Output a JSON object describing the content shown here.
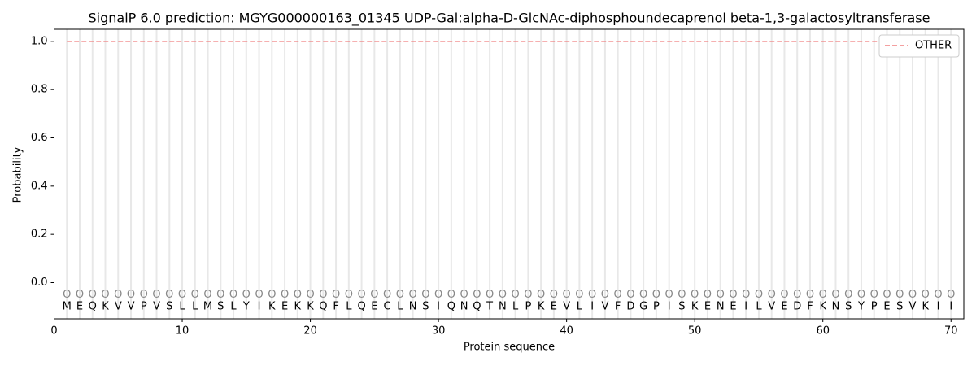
{
  "chart_data": {
    "type": "line",
    "title": "SignalP 6.0 prediction: MGYG000000163_01345 UDP-Gal:alpha-D-GlcNAc-diphosphoundecaprenol beta-1,3-galactosyltransferase",
    "x_label": "Protein sequence",
    "y_label": "Probability",
    "x": [
      1,
      2,
      3,
      4,
      5,
      6,
      7,
      8,
      9,
      10,
      11,
      12,
      13,
      14,
      15,
      16,
      17,
      18,
      19,
      20,
      21,
      22,
      23,
      24,
      25,
      26,
      27,
      28,
      29,
      30,
      31,
      32,
      33,
      34,
      35,
      36,
      37,
      38,
      39,
      40,
      41,
      42,
      43,
      44,
      45,
      46,
      47,
      48,
      49,
      50,
      51,
      52,
      53,
      54,
      55,
      56,
      57,
      58,
      59,
      60,
      61,
      62,
      63,
      64,
      65,
      66,
      67,
      68,
      69,
      70
    ],
    "sequence": [
      "M",
      "E",
      "Q",
      "K",
      "V",
      "V",
      "P",
      "V",
      "S",
      "L",
      "L",
      "M",
      "S",
      "L",
      "Y",
      "I",
      "K",
      "E",
      "K",
      "K",
      "Q",
      "F",
      "L",
      "Q",
      "E",
      "C",
      "L",
      "N",
      "S",
      "I",
      "Q",
      "N",
      "Q",
      "T",
      "N",
      "L",
      "P",
      "K",
      "E",
      "V",
      "L",
      "I",
      "V",
      "F",
      "D",
      "G",
      "P",
      "I",
      "S",
      "K",
      "E",
      "N",
      "E",
      "I",
      "L",
      "V",
      "E",
      "D",
      "F",
      "K",
      "N",
      "S",
      "Y",
      "P",
      "E",
      "S",
      "V",
      "K",
      "I",
      "I"
    ],
    "region_labels": [
      "O",
      "O",
      "O",
      "O",
      "O",
      "O",
      "O",
      "O",
      "O",
      "O",
      "O",
      "O",
      "O",
      "O",
      "O",
      "O",
      "O",
      "O",
      "O",
      "O",
      "O",
      "O",
      "O",
      "O",
      "O",
      "O",
      "O",
      "O",
      "O",
      "O",
      "O",
      "O",
      "O",
      "O",
      "O",
      "O",
      "O",
      "O",
      "O",
      "O",
      "O",
      "O",
      "O",
      "O",
      "O",
      "O",
      "O",
      "O",
      "O",
      "O",
      "O",
      "O",
      "O",
      "O",
      "O",
      "O",
      "O",
      "O",
      "O",
      "O",
      "O",
      "O",
      "O",
      "O",
      "O",
      "O",
      "O",
      "O",
      "O",
      "O"
    ],
    "series": [
      {
        "name": "OTHER",
        "color": "#f08080",
        "dashed": true,
        "values": [
          1,
          1,
          1,
          1,
          1,
          1,
          1,
          1,
          1,
          1,
          1,
          1,
          1,
          1,
          1,
          1,
          1,
          1,
          1,
          1,
          1,
          1,
          1,
          1,
          1,
          1,
          1,
          1,
          1,
          1,
          1,
          1,
          1,
          1,
          1,
          1,
          1,
          1,
          1,
          1,
          1,
          1,
          1,
          1,
          1,
          1,
          1,
          1,
          1,
          1,
          1,
          1,
          1,
          1,
          1,
          1,
          1,
          1,
          1,
          1,
          1,
          1,
          1,
          1,
          1,
          1,
          1,
          1,
          1,
          1
        ]
      }
    ],
    "xlim": [
      0,
      71
    ],
    "ylim": [
      -0.15,
      1.05
    ],
    "xticks": [
      0,
      10,
      20,
      30,
      40,
      50,
      60,
      70
    ],
    "yticks": [
      {
        "value": 0,
        "label": "0.0"
      },
      {
        "value": 0.2,
        "label": "0.2"
      },
      {
        "value": 0.4,
        "label": "0.4"
      },
      {
        "value": 0.6,
        "label": "0.6"
      },
      {
        "value": 0.8,
        "label": "0.8"
      },
      {
        "value": 1,
        "label": "1.0"
      }
    ],
    "legend": "upper right"
  }
}
